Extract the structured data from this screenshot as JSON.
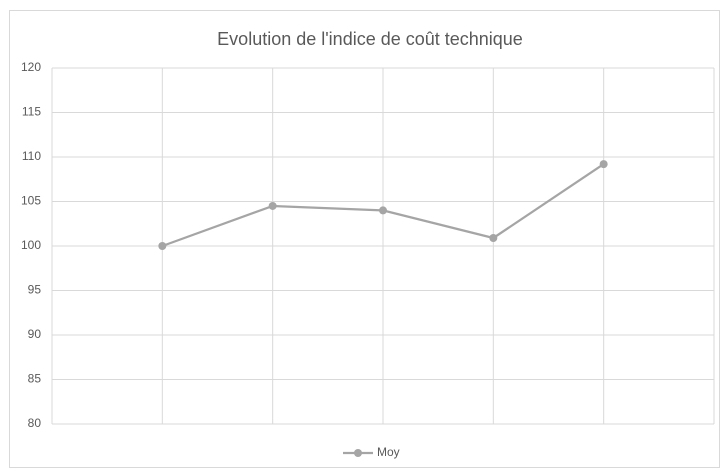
{
  "chart_data": {
    "type": "line",
    "title": "Evolution de l'indice de coût technique",
    "categories": [
      null,
      null,
      null,
      null,
      null
    ],
    "series": [
      {
        "name": "Moy",
        "color": "#a5a5a5",
        "values": [
          100,
          104.5,
          104,
          100.9,
          109.2
        ]
      }
    ],
    "ylim": [
      80,
      120
    ],
    "yticks": [
      80,
      85,
      90,
      95,
      100,
      105,
      110,
      115,
      120
    ],
    "grid": true,
    "legend": "bottom"
  }
}
